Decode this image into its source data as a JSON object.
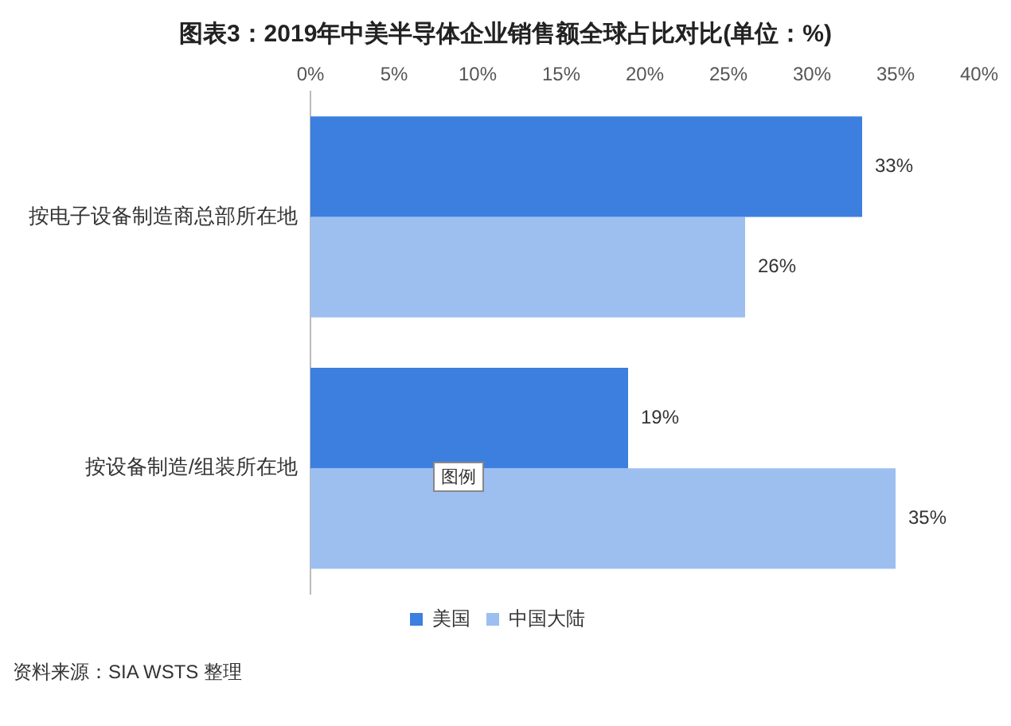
{
  "chart_data": {
    "type": "bar",
    "orientation": "horizontal",
    "title": "图表3：2019年中美半导体企业销售额全球占比对比(单位：%)",
    "categories": [
      "按电子设备制造商总部所在地",
      "按设备制造/组装所在地"
    ],
    "series": [
      {
        "name": "美国",
        "color": "#3c7fdf",
        "values": [
          33,
          19
        ],
        "value_labels": [
          "33%",
          "19%"
        ]
      },
      {
        "name": "中国大陆",
        "color": "#9dbff0",
        "values": [
          26,
          35
        ],
        "value_labels": [
          "26%",
          "35%"
        ]
      }
    ],
    "xlim": [
      0,
      40
    ],
    "xticks": [
      {
        "value": 0,
        "label": "0%"
      },
      {
        "value": 5,
        "label": "5%"
      },
      {
        "value": 10,
        "label": "10%"
      },
      {
        "value": 15,
        "label": "15%"
      },
      {
        "value": 20,
        "label": "20%"
      },
      {
        "value": 25,
        "label": "25%"
      },
      {
        "value": 30,
        "label": "30%"
      },
      {
        "value": 35,
        "label": "35%"
      },
      {
        "value": 40,
        "label": "40%"
      }
    ],
    "annotations": [
      "图例",
      "资料来源：SIA WSTS 整理"
    ],
    "grid": false,
    "legend": "bottom"
  }
}
